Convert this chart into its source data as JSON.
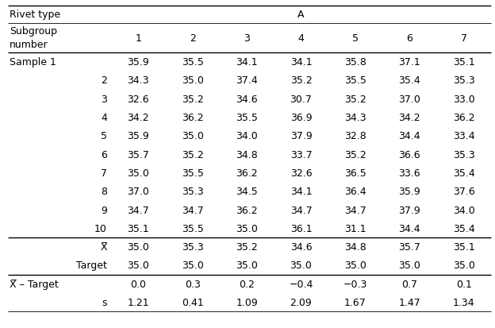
{
  "rivet_type_label": "Rivet type",
  "rivet_type_value": "A",
  "subgroup_label": "Subgroup\nnumber",
  "col_headers": [
    "1",
    "2",
    "3",
    "4",
    "5",
    "6",
    "7"
  ],
  "row_labels": [
    "Sample 1",
    "2",
    "3",
    "4",
    "5",
    "6",
    "7",
    "8",
    "9",
    "10"
  ],
  "sample_data": [
    [
      35.9,
      35.5,
      34.1,
      34.1,
      35.8,
      37.1,
      35.1
    ],
    [
      34.3,
      35.0,
      37.4,
      35.2,
      35.5,
      35.4,
      35.3
    ],
    [
      32.6,
      35.2,
      34.6,
      30.7,
      35.2,
      37.0,
      33.0
    ],
    [
      34.2,
      36.2,
      35.5,
      36.9,
      34.3,
      34.2,
      36.2
    ],
    [
      35.9,
      35.0,
      34.0,
      37.9,
      32.8,
      34.4,
      33.4
    ],
    [
      35.7,
      35.2,
      34.8,
      33.7,
      35.2,
      36.6,
      35.3
    ],
    [
      35.0,
      35.5,
      36.2,
      32.6,
      36.5,
      33.6,
      35.4
    ],
    [
      37.0,
      35.3,
      34.5,
      34.1,
      36.4,
      35.9,
      37.6
    ],
    [
      34.7,
      34.7,
      36.2,
      34.7,
      34.7,
      37.9,
      34.0
    ],
    [
      35.1,
      35.5,
      35.0,
      36.1,
      31.1,
      34.4,
      35.4
    ]
  ],
  "xbar_label": "X̅",
  "xbar_values": [
    "35.0",
    "35.3",
    "35.2",
    "34.6",
    "34.8",
    "35.7",
    "35.1"
  ],
  "target_label": "Target",
  "target_values": [
    "35.0",
    "35.0",
    "35.0",
    "35.0",
    "35.0",
    "35.0",
    "35.0"
  ],
  "xbar_minus_target_label": "X̅ – Target",
  "xbar_minus_target_values": [
    "0.0",
    "0.3",
    "0.2",
    "−0.4",
    "−0.3",
    "0.7",
    "0.1"
  ],
  "s_label": "s",
  "s_values": [
    "1.21",
    "0.41",
    "1.09",
    "2.09",
    "1.67",
    "1.47",
    "1.34"
  ],
  "bg_color": "#ffffff",
  "text_color": "#000000",
  "font_size": 9.0,
  "fig_width": 6.24,
  "fig_height": 4.14,
  "dpi": 100
}
